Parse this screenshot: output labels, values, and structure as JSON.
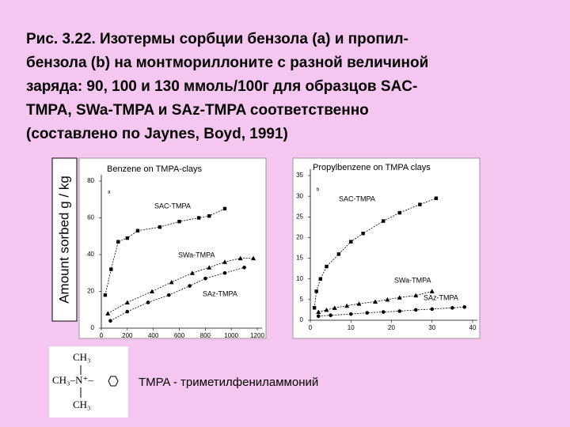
{
  "caption": [
    "Рис. 3.22. Изотермы сорбции бензола (a) и пропил-",
    "бензола (b) на монтмориллоните с разной величиной",
    "заряда: 90, 100 и 130 ммоль/100г для образцов SAC-",
    "TMPA, SWa-TMPA и  SAz-TMPA соответственно",
    "(составлено по Jaynes, Boyd, 1991)"
  ],
  "y_axis_label": "Amount sorbed  g / kg",
  "chart_data": [
    {
      "type": "scatter",
      "title": "Benzene on TMPA-clays",
      "panel": "a",
      "xlim": [
        0,
        1200
      ],
      "xticks": [
        0,
        200,
        400,
        600,
        800,
        1000,
        1200
      ],
      "ylim": [
        0,
        80
      ],
      "yticks": [
        0,
        20,
        40,
        60,
        80
      ],
      "series": [
        {
          "name": "SAC-TMPA",
          "color": "#000000",
          "marker": "square",
          "x": [
            30,
            75,
            130,
            200,
            280,
            450,
            600,
            750,
            830,
            950
          ],
          "values": [
            18,
            32,
            47,
            49,
            53,
            55,
            58,
            60,
            61,
            65
          ]
        },
        {
          "name": "SWa-TMPA",
          "color": "#000000",
          "marker": "triangle",
          "x": [
            50,
            200,
            390,
            540,
            700,
            830,
            950,
            1070,
            1170
          ],
          "values": [
            8,
            14,
            20,
            25,
            30,
            33,
            36,
            38,
            38
          ]
        },
        {
          "name": "SAz-TMPA",
          "color": "#000000",
          "marker": "circle",
          "x": [
            70,
            200,
            360,
            520,
            680,
            800,
            950,
            1100
          ],
          "values": [
            4,
            9,
            14,
            18,
            23,
            27,
            30,
            33
          ]
        }
      ]
    },
    {
      "type": "scatter",
      "title": "Propylbenzene on TMPA clays",
      "panel": "b",
      "xlim": [
        0,
        40
      ],
      "xticks": [
        0,
        10,
        20,
        30,
        40
      ],
      "ylim": [
        0,
        35
      ],
      "yticks": [
        0,
        5,
        10,
        15,
        20,
        25,
        30,
        35
      ],
      "series": [
        {
          "name": "SAC-TMPA",
          "color": "#000000",
          "marker": "square",
          "x": [
            1,
            1.5,
            2.5,
            4,
            7,
            10,
            13,
            18,
            22,
            27,
            31
          ],
          "values": [
            3,
            7,
            10,
            13,
            16,
            19,
            21,
            24,
            26,
            28,
            29.5
          ]
        },
        {
          "name": "SWa-TMPA",
          "color": "#000000",
          "marker": "triangle",
          "x": [
            2,
            4,
            6,
            9,
            12,
            16,
            19,
            22,
            26,
            30
          ],
          "values": [
            2,
            2.5,
            3,
            3.5,
            4,
            4.5,
            5,
            5.5,
            6,
            7
          ]
        },
        {
          "name": "SAz-TMPA",
          "color": "#000000",
          "marker": "circle",
          "x": [
            2,
            5,
            10,
            14,
            18,
            22,
            26,
            30,
            35,
            38
          ],
          "values": [
            1,
            1.2,
            1.5,
            1.8,
            2,
            2.2,
            2.5,
            2.7,
            3,
            3.2
          ]
        }
      ]
    }
  ],
  "structure": {
    "top": "CH₃",
    "middle": "CH₃–N⁺–",
    "bottom": "CH₃"
  },
  "footnote": "TMPA - триметилфениламмоний"
}
